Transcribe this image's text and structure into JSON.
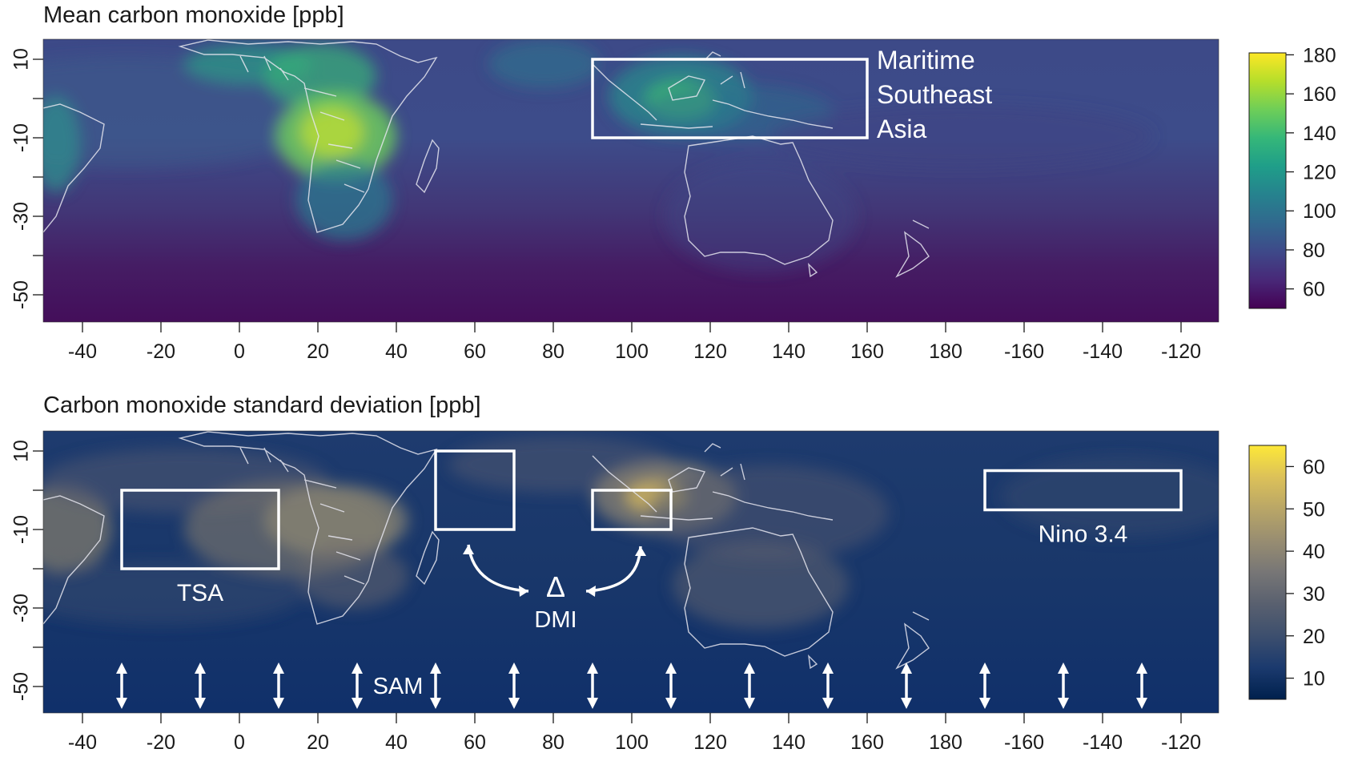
{
  "panels": [
    {
      "title": "Mean carbon monoxide [ppb]",
      "colorbar": {
        "ticks": [
          "180",
          "160",
          "140",
          "120",
          "100",
          "80",
          "60"
        ],
        "tick_values": [
          180,
          160,
          140,
          120,
          100,
          80,
          60
        ],
        "range": [
          50,
          181
        ],
        "colors": [
          "#440154",
          "#482878",
          "#3e4989",
          "#31688e",
          "#26828e",
          "#1f9e89",
          "#35b779",
          "#6ece58",
          "#b5de2b",
          "#fde725"
        ]
      },
      "lat_ticks": [
        "10",
        "-10",
        "-30",
        "-50"
      ],
      "lat_tick_values": [
        10,
        -10,
        -30,
        -50
      ],
      "lon_ticks": [
        "-40",
        "-20",
        "0",
        "20",
        "40",
        "60",
        "80",
        "100",
        "120",
        "140",
        "160",
        "180",
        "-160",
        "-140",
        "-120"
      ],
      "lon_tick_values": [
        -40,
        -20,
        0,
        20,
        40,
        60,
        80,
        100,
        120,
        140,
        160,
        180,
        200,
        220,
        240
      ],
      "regions": [
        {
          "name": "Maritime Southeast Asia",
          "label_lines": [
            "Maritime",
            "Southeast",
            "Asia"
          ],
          "lon": [
            90,
            160
          ],
          "lat": [
            -10,
            10
          ]
        }
      ]
    },
    {
      "title": "Carbon monoxide standard deviation [ppb]",
      "colorbar": {
        "ticks": [
          "60",
          "50",
          "40",
          "30",
          "20",
          "10"
        ],
        "tick_values": [
          60,
          50,
          40,
          30,
          20,
          10
        ],
        "range": [
          5,
          65
        ],
        "colors": [
          "#00204d",
          "#1b3a6e",
          "#3d4f6e",
          "#59606f",
          "#777676",
          "#988d71",
          "#b9a667",
          "#dcc159",
          "#fde838"
        ]
      },
      "lat_ticks": [
        "10",
        "-10",
        "-30",
        "-50"
      ],
      "lat_tick_values": [
        10,
        -10,
        -30,
        -50
      ],
      "lon_ticks": [
        "-40",
        "-20",
        "0",
        "20",
        "40",
        "60",
        "80",
        "100",
        "120",
        "140",
        "160",
        "180",
        "-160",
        "-140",
        "-120"
      ],
      "lon_tick_values": [
        -40,
        -20,
        0,
        20,
        40,
        60,
        80,
        100,
        120,
        140,
        160,
        180,
        200,
        220,
        240
      ],
      "regions": [
        {
          "name": "TSA",
          "label": "TSA",
          "lon": [
            -30,
            10
          ],
          "lat": [
            -20,
            0
          ]
        },
        {
          "name": "DMI west",
          "label": "",
          "lon": [
            50,
            70
          ],
          "lat": [
            -10,
            10
          ]
        },
        {
          "name": "DMI east",
          "label": "",
          "lon": [
            90,
            110
          ],
          "lat": [
            -10,
            0
          ]
        },
        {
          "name": "Nino 3.4",
          "label": "Nino 3.4",
          "lon": [
            190,
            240
          ],
          "lat": [
            -5,
            5
          ]
        }
      ],
      "dmi_label": {
        "symbol": "Δ",
        "text": "DMI"
      },
      "sam_label": "SAM",
      "sam_arrow_lons": [
        -30,
        -10,
        10,
        30,
        50,
        70,
        90,
        110,
        130,
        150,
        170,
        190,
        210,
        230
      ]
    }
  ],
  "map_extent": {
    "lon": [
      -50,
      250
    ],
    "lat": [
      -60,
      15
    ]
  }
}
